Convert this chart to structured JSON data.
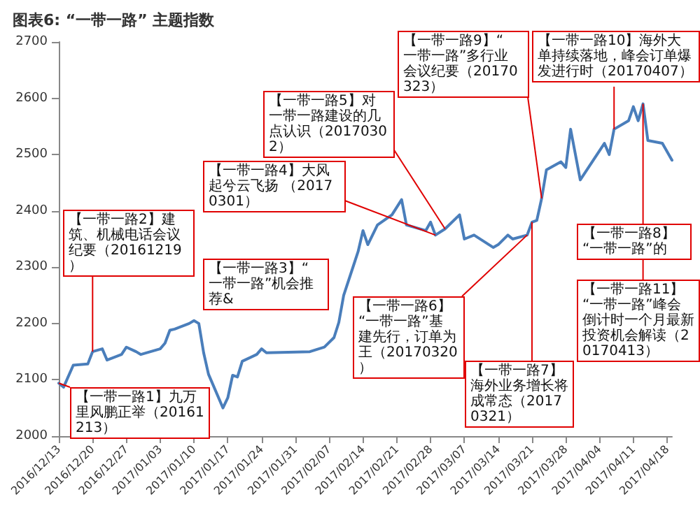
{
  "chart_data": {
    "type": "line",
    "title": "图表6: “一带一路” 主题指数",
    "x": [
      "2016-12-13",
      "2016-12-14",
      "2016-12-16",
      "2016-12-19",
      "2016-12-20",
      "2016-12-22",
      "2016-12-23",
      "2016-12-26",
      "2016-12-27",
      "2016-12-29",
      "2016-12-30",
      "2017-01-03",
      "2017-01-04",
      "2017-01-05",
      "2017-01-06",
      "2017-01-09",
      "2017-01-10",
      "2017-01-11",
      "2017-01-12",
      "2017-01-13",
      "2017-01-16",
      "2017-01-17",
      "2017-01-18",
      "2017-01-19",
      "2017-01-20",
      "2017-01-23",
      "2017-01-24",
      "2017-01-25",
      "2017-02-03",
      "2017-02-06",
      "2017-02-08",
      "2017-02-09",
      "2017-02-10",
      "2017-02-13",
      "2017-02-14",
      "2017-02-15",
      "2017-02-17",
      "2017-02-20",
      "2017-02-22",
      "2017-02-23",
      "2017-02-27",
      "2017-02-28",
      "2017-03-01",
      "2017-03-03",
      "2017-03-06",
      "2017-03-07",
      "2017-03-09",
      "2017-03-13",
      "2017-03-14",
      "2017-03-16",
      "2017-03-17",
      "2017-03-20",
      "2017-03-21",
      "2017-03-22",
      "2017-03-23",
      "2017-03-24",
      "2017-03-27",
      "2017-03-28",
      "2017-03-29",
      "2017-03-31",
      "2017-04-05",
      "2017-04-06",
      "2017-04-07",
      "2017-04-10",
      "2017-04-11",
      "2017-04-12",
      "2017-04-13",
      "2017-04-14",
      "2017-04-17",
      "2017-04-19"
    ],
    "series": [
      {
        "color": "#4a7ebb",
        "values": [
          2094,
          2087,
          2126,
          2128,
          2150,
          2155,
          2135,
          2145,
          2158,
          2150,
          2145,
          2155,
          2165,
          2188,
          2190,
          2200,
          2205,
          2200,
          2148,
          2110,
          2050,
          2068,
          2108,
          2105,
          2133,
          2145,
          2155,
          2148,
          2150,
          2158,
          2175,
          2202,
          2250,
          2328,
          2365,
          2340,
          2375,
          2393,
          2420,
          2375,
          2365,
          2380,
          2357,
          2368,
          2393,
          2350,
          2357,
          2335,
          2340,
          2357,
          2350,
          2357,
          2380,
          2383,
          2422,
          2473,
          2487,
          2477,
          2545,
          2455,
          2520,
          2500,
          2545,
          2560,
          2585,
          2560,
          2590,
          2525,
          2520,
          2490
        ]
      }
    ],
    "xlim": [
      "2016-12-13",
      "2017-04-19"
    ],
    "xticks": [
      {
        "value": "2016-12-13",
        "label": "2016/12/13"
      },
      {
        "value": "2016-12-20",
        "label": "2016/12/20"
      },
      {
        "value": "2016-12-27",
        "label": "2016/12/27"
      },
      {
        "value": "2017-01-03",
        "label": "2017/01/03"
      },
      {
        "value": "2017-01-10",
        "label": "2017/01/10"
      },
      {
        "value": "2017-01-17",
        "label": "2017/01/17"
      },
      {
        "value": "2017-01-24",
        "label": "2017/01/24"
      },
      {
        "value": "2017-01-31",
        "label": "2017/01/31"
      },
      {
        "value": "2017-02-07",
        "label": "2017/02/07"
      },
      {
        "value": "2017-02-14",
        "label": "2017/02/14"
      },
      {
        "value": "2017-02-21",
        "label": "2017/02/21"
      },
      {
        "value": "2017-02-28",
        "label": "2017/02/28"
      },
      {
        "value": "2017-03-07",
        "label": "2017/03/07"
      },
      {
        "value": "2017-03-14",
        "label": "2017/03/14"
      },
      {
        "value": "2017-03-21",
        "label": "2017/03/21"
      },
      {
        "value": "2017-03-28",
        "label": "2017/03/28"
      },
      {
        "value": "2017-04-04",
        "label": "2017/04/04"
      },
      {
        "value": "2017-04-11",
        "label": "2017/04/11"
      },
      {
        "value": "2017-04-18",
        "label": "2017/04/18"
      }
    ],
    "ylim": [
      2000,
      2700
    ],
    "yticks": [
      2000,
      2100,
      2200,
      2300,
      2400,
      2500,
      2600,
      2700
    ],
    "grid": false,
    "marker": "none",
    "line_style": "solid",
    "annotations": [
      {
        "text": "【一带一路1】九万里风鹏正举（20161213）",
        "x": "2016-12-13",
        "y": 2094
      },
      {
        "text": "【一带一路2】建筑、机械电话会议纪要（20161219）",
        "x": "2016-12-20",
        "y": 2150
      },
      "【一带一路3】“一带一路”机会推荐&",
      {
        "text": "【一带一路4】大风起兮云飞扬 （20170301）",
        "x": "2017-03-01",
        "y": 2357
      },
      {
        "text": "【一带一路5】对一带一路建设的几点认识（20170302）",
        "x": "2017-03-03",
        "y": 2368
      },
      {
        "text": "【一带一路6】“一带一路”基建先行，订单为王（20170320）",
        "x": "2017-03-20",
        "y": 2357
      },
      {
        "text": "【一带一路7】海外业务增长将成常态（20170321）",
        "x": "2017-03-21",
        "y": 2380
      },
      "【一带一路8】“一带一路”的",
      {
        "text": "【一带一路9】“一带一路”多行业会议纪要（20170323）",
        "x": "2017-03-23",
        "y": 2422
      },
      {
        "text": "【一带一路10】海外大单持续落地，峰会订单爆发进行时（20170407）",
        "x": "2017-04-07",
        "y": 2545
      },
      {
        "text": "【一带一路11】“一带一路”峰会倒计时一个月最新投资机会解读（20170413）",
        "x": "2017-04-13",
        "y": 2590
      }
    ]
  }
}
